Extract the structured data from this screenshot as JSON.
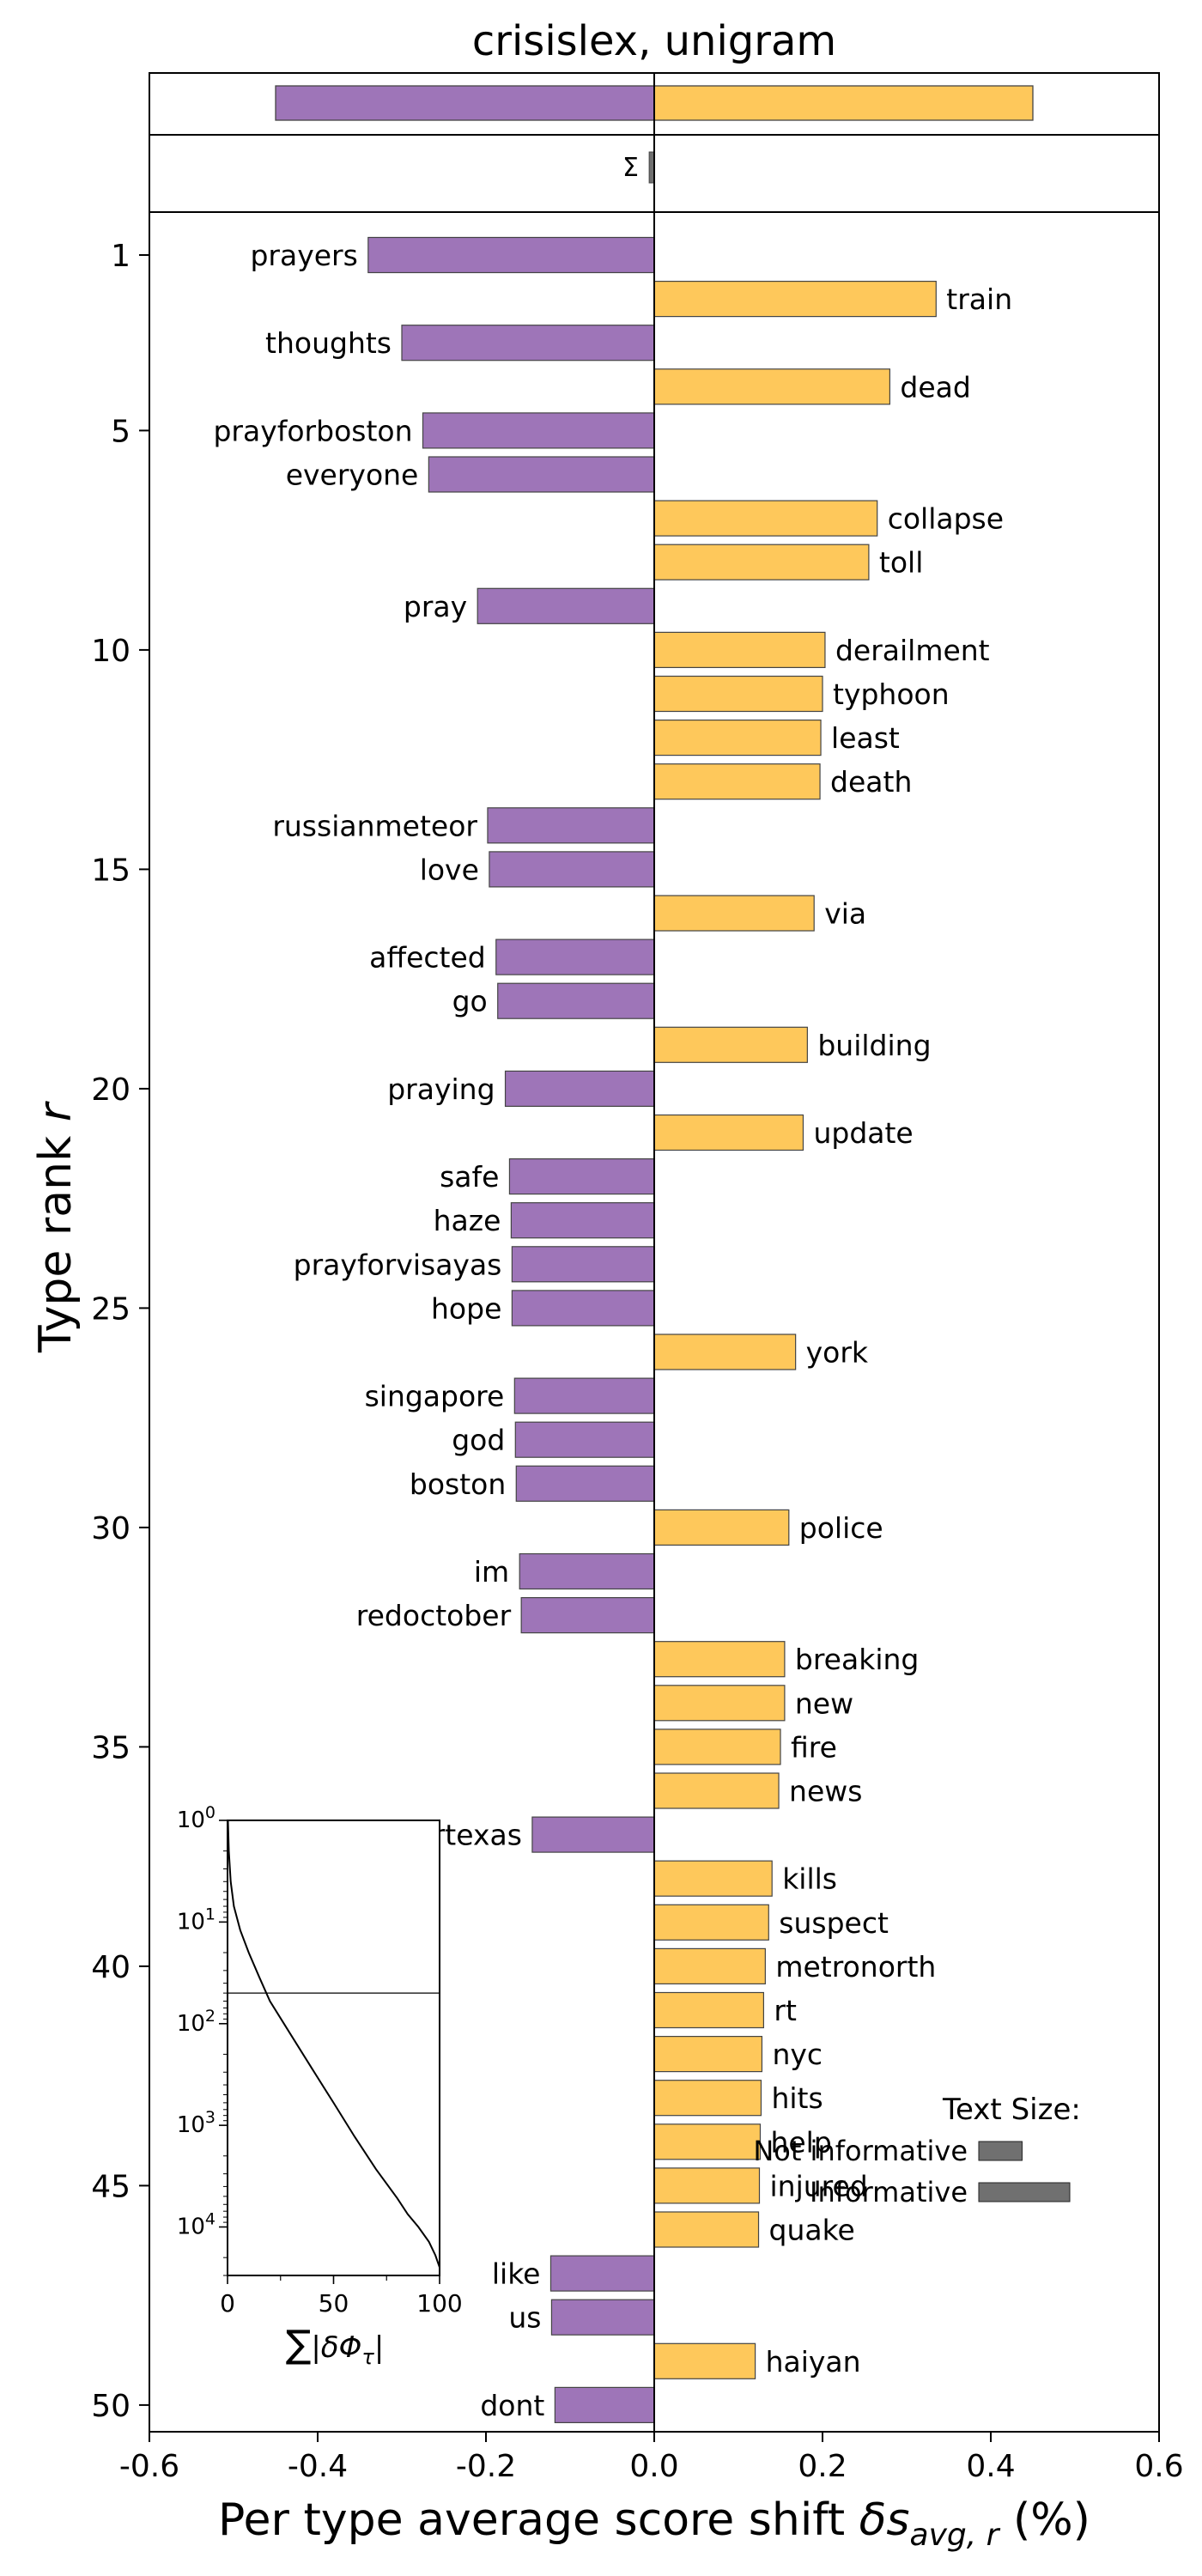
{
  "chart_data": {
    "type": "bar",
    "title": "crisislex, unigram",
    "xlabel": "Per type average score shift δs_avg,r (%)",
    "xlabel_parts": {
      "text": "Per type average score shift ",
      "sym": "δs",
      "sub": "avg, r",
      "suffix": " (%)"
    },
    "ylabel": "Type rank r",
    "ylabel_parts": {
      "text": "Type rank ",
      "sym": "r"
    },
    "xlim": [
      -0.6,
      0.6
    ],
    "xticks": [
      -0.6,
      -0.4,
      -0.2,
      0.0,
      0.2,
      0.4,
      0.6
    ],
    "xtick_labels": [
      "-0.6",
      "-0.4",
      "-0.2",
      "0.0",
      "0.2",
      "0.4",
      "0.6"
    ],
    "yticks": [
      1,
      5,
      10,
      15,
      20,
      25,
      30,
      35,
      40,
      45,
      50
    ],
    "colors": {
      "negative": "#9e75b8",
      "positive": "#fec85b",
      "sigma_bar": "#707070",
      "edge": "#444444"
    },
    "totals": {
      "negative": -0.45,
      "positive": 0.45
    },
    "sigma": {
      "label": "Σ",
      "value": -0.006
    },
    "series": [
      {
        "values": [
          {
            "rank": 1,
            "word": "prayers",
            "value": -0.34
          },
          {
            "rank": 2,
            "word": "train",
            "value": 0.335
          },
          {
            "rank": 3,
            "word": "thoughts",
            "value": -0.3
          },
          {
            "rank": 4,
            "word": "dead",
            "value": 0.28
          },
          {
            "rank": 5,
            "word": "prayforboston",
            "value": -0.275
          },
          {
            "rank": 6,
            "word": "everyone",
            "value": -0.268
          },
          {
            "rank": 7,
            "word": "collapse",
            "value": 0.265
          },
          {
            "rank": 8,
            "word": "toll",
            "value": 0.255
          },
          {
            "rank": 9,
            "word": "pray",
            "value": -0.21
          },
          {
            "rank": 10,
            "word": "derailment",
            "value": 0.203
          },
          {
            "rank": 11,
            "word": "typhoon",
            "value": 0.2
          },
          {
            "rank": 12,
            "word": "least",
            "value": 0.198
          },
          {
            "rank": 13,
            "word": "death",
            "value": 0.197
          },
          {
            "rank": 14,
            "word": "russianmeteor",
            "value": -0.198
          },
          {
            "rank": 15,
            "word": "love",
            "value": -0.196
          },
          {
            "rank": 16,
            "word": "via",
            "value": 0.19
          },
          {
            "rank": 17,
            "word": "affected",
            "value": -0.188
          },
          {
            "rank": 18,
            "word": "go",
            "value": -0.186
          },
          {
            "rank": 19,
            "word": "building",
            "value": 0.182
          },
          {
            "rank": 20,
            "word": "praying",
            "value": -0.177
          },
          {
            "rank": 21,
            "word": "update",
            "value": 0.177
          },
          {
            "rank": 22,
            "word": "safe",
            "value": -0.172
          },
          {
            "rank": 23,
            "word": "haze",
            "value": -0.17
          },
          {
            "rank": 24,
            "word": "prayforvisayas",
            "value": -0.169
          },
          {
            "rank": 25,
            "word": "hope",
            "value": -0.169
          },
          {
            "rank": 26,
            "word": "york",
            "value": 0.168
          },
          {
            "rank": 27,
            "word": "singapore",
            "value": -0.166
          },
          {
            "rank": 28,
            "word": "god",
            "value": -0.165
          },
          {
            "rank": 29,
            "word": "boston",
            "value": -0.164
          },
          {
            "rank": 30,
            "word": "police",
            "value": 0.16
          },
          {
            "rank": 31,
            "word": "im",
            "value": -0.16
          },
          {
            "rank": 32,
            "word": "redoctober",
            "value": -0.158
          },
          {
            "rank": 33,
            "word": "breaking",
            "value": 0.155
          },
          {
            "rank": 34,
            "word": "new",
            "value": 0.155
          },
          {
            "rank": 35,
            "word": "fire",
            "value": 0.15
          },
          {
            "rank": 36,
            "word": "news",
            "value": 0.148
          },
          {
            "rank": 37,
            "word": "prayfortexas",
            "value": -0.145
          },
          {
            "rank": 38,
            "word": "kills",
            "value": 0.14
          },
          {
            "rank": 39,
            "word": "suspect",
            "value": 0.136
          },
          {
            "rank": 40,
            "word": "metronorth",
            "value": 0.132
          },
          {
            "rank": 41,
            "word": "rt",
            "value": 0.13
          },
          {
            "rank": 42,
            "word": "nyc",
            "value": 0.128
          },
          {
            "rank": 43,
            "word": "hits",
            "value": 0.127
          },
          {
            "rank": 44,
            "word": "help",
            "value": 0.126
          },
          {
            "rank": 45,
            "word": "injured",
            "value": 0.125
          },
          {
            "rank": 46,
            "word": "quake",
            "value": 0.124
          },
          {
            "rank": 47,
            "word": "like",
            "value": -0.123
          },
          {
            "rank": 48,
            "word": "us",
            "value": -0.122
          },
          {
            "rank": 49,
            "word": "haiyan",
            "value": 0.12
          },
          {
            "rank": 50,
            "word": "dont",
            "value": -0.118
          }
        ]
      }
    ],
    "inset": {
      "xlabel": "∑|δΦτ|",
      "xlabel_parts": {
        "sum": "∑",
        "body": "|δΦ",
        "sub": "τ",
        "end": "|"
      },
      "xlim": [
        0,
        100
      ],
      "xticks": [
        0,
        50,
        100
      ],
      "ylog": true,
      "yticks": [
        {
          "base": "10",
          "exp": "0",
          "value": 1
        },
        {
          "base": "10",
          "exp": "1",
          "value": 10
        },
        {
          "base": "10",
          "exp": "2",
          "value": 100
        },
        {
          "base": "10",
          "exp": "3",
          "value": 1000
        },
        {
          "base": "10",
          "exp": "4",
          "value": 10000
        }
      ],
      "ylim": [
        1,
        30000
      ],
      "hline": 50,
      "curve": [
        [
          0.2,
          1
        ],
        [
          0.6,
          2
        ],
        [
          1.5,
          4
        ],
        [
          3,
          7
        ],
        [
          6,
          12
        ],
        [
          10,
          20
        ],
        [
          15,
          35
        ],
        [
          20,
          60
        ],
        [
          30,
          130
        ],
        [
          40,
          280
        ],
        [
          50,
          600
        ],
        [
          60,
          1300
        ],
        [
          70,
          2700
        ],
        [
          80,
          5200
        ],
        [
          85,
          7500
        ],
        [
          90,
          10000
        ],
        [
          95,
          14000
        ],
        [
          98,
          19000
        ],
        [
          100,
          25000
        ]
      ]
    },
    "legend": {
      "title": "Text Size:",
      "items": [
        {
          "label": "Not informative",
          "size": 20000
        },
        {
          "label": "Informative",
          "size": 42000
        }
      ]
    }
  }
}
